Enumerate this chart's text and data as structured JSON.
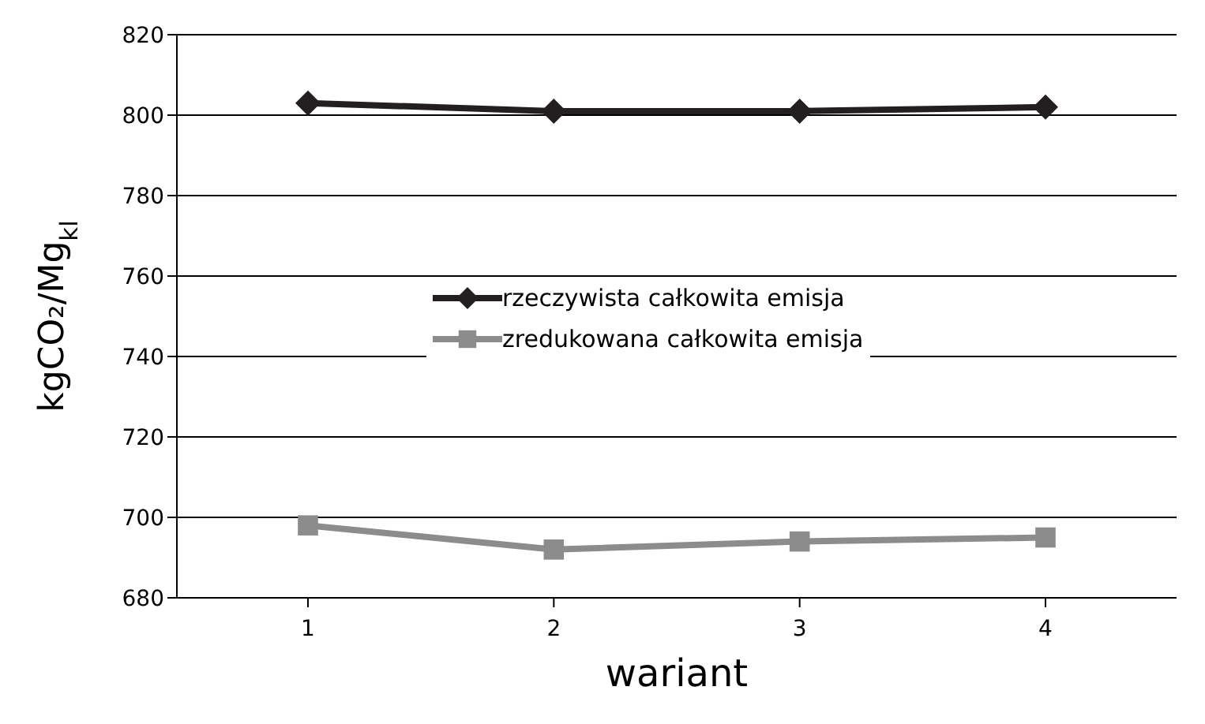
{
  "chart_data": {
    "type": "line",
    "xlabel": "wariant",
    "ylabel": "kgCO₂/Mg$_{kl}$",
    "categories": [
      "1",
      "2",
      "3",
      "4"
    ],
    "series": [
      {
        "name": "rzeczywista całkowita emisja",
        "color": "#231f20",
        "marker": "diamond",
        "values": [
          803,
          801,
          801,
          802
        ]
      },
      {
        "name": "zredukowana całkowita emisja",
        "color": "#8c8c8c",
        "marker": "square",
        "values": [
          698,
          692,
          694,
          695
        ]
      }
    ],
    "ylim": [
      680,
      820
    ],
    "yticks": [
      680,
      700,
      720,
      740,
      760,
      780,
      800,
      820
    ],
    "grid": "y",
    "legend": "center"
  }
}
